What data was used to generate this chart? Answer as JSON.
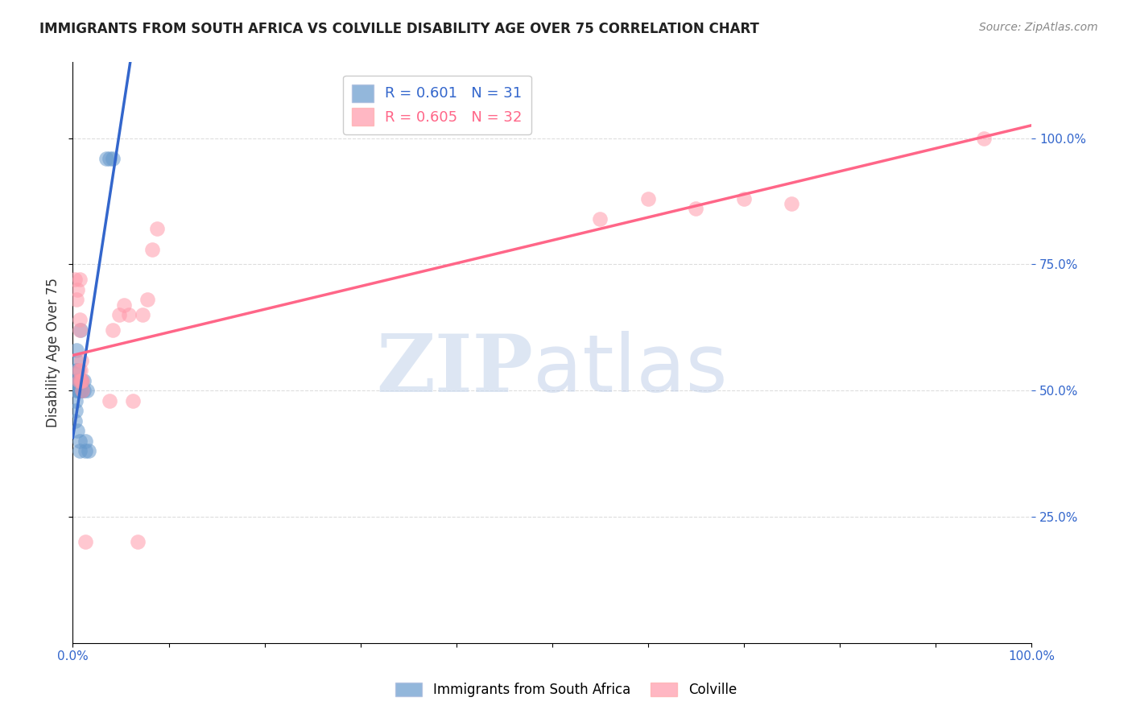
{
  "title": "IMMIGRANTS FROM SOUTH AFRICA VS COLVILLE DISABILITY AGE OVER 75 CORRELATION CHART",
  "source": "Source: ZipAtlas.com",
  "ylabel": "Disability Age Over 75",
  "legend_blue_label": "Immigrants from South Africa",
  "legend_pink_label": "Colville",
  "blue_R": 0.601,
  "blue_N": 31,
  "pink_R": 0.605,
  "pink_N": 32,
  "blue_color": "#6699cc",
  "pink_color": "#ff99aa",
  "blue_line_color": "#3366cc",
  "pink_line_color": "#ff6688",
  "background_color": "#ffffff",
  "grid_color": "#dddddd",
  "blue_scatter_x": [
    0.002,
    0.003,
    0.003,
    0.004,
    0.004,
    0.004,
    0.004,
    0.004,
    0.005,
    0.005,
    0.005,
    0.005,
    0.006,
    0.006,
    0.007,
    0.007,
    0.008,
    0.008,
    0.008,
    0.009,
    0.009,
    0.01,
    0.011,
    0.011,
    0.013,
    0.013,
    0.015,
    0.016,
    0.035,
    0.038,
    0.042
  ],
  "blue_scatter_y": [
    0.44,
    0.46,
    0.48,
    0.5,
    0.52,
    0.54,
    0.56,
    0.58,
    0.42,
    0.5,
    0.52,
    0.54,
    0.5,
    0.52,
    0.38,
    0.4,
    0.5,
    0.52,
    0.62,
    0.5,
    0.52,
    0.5,
    0.5,
    0.52,
    0.38,
    0.4,
    0.5,
    0.38,
    0.96,
    0.96,
    0.96
  ],
  "pink_scatter_x": [
    0.002,
    0.004,
    0.005,
    0.006,
    0.006,
    0.007,
    0.007,
    0.007,
    0.008,
    0.008,
    0.009,
    0.009,
    0.01,
    0.01,
    0.013,
    0.038,
    0.042,
    0.048,
    0.053,
    0.058,
    0.063,
    0.068,
    0.073,
    0.078,
    0.083,
    0.088,
    0.55,
    0.6,
    0.65,
    0.7,
    0.75,
    0.95
  ],
  "pink_scatter_y": [
    0.72,
    0.68,
    0.7,
    0.52,
    0.54,
    0.62,
    0.64,
    0.72,
    0.52,
    0.54,
    0.52,
    0.56,
    0.5,
    0.52,
    0.2,
    0.48,
    0.62,
    0.65,
    0.67,
    0.65,
    0.48,
    0.2,
    0.65,
    0.68,
    0.78,
    0.82,
    0.84,
    0.88,
    0.86,
    0.88,
    0.87,
    1.0
  ],
  "xlim": [
    0.0,
    1.0
  ],
  "ylim": [
    0.0,
    1.15
  ]
}
